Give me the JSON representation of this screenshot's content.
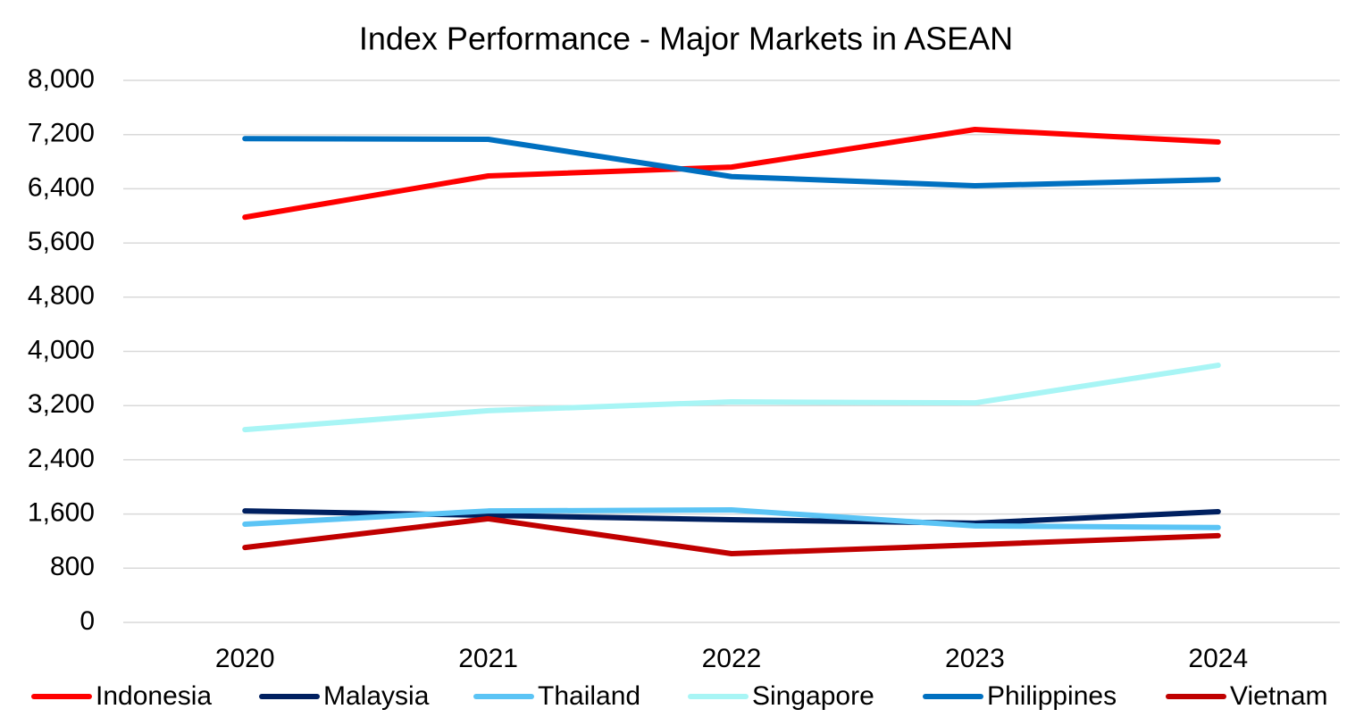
{
  "chart_data": {
    "type": "line",
    "title": "Index Performance - Major Markets in ASEAN",
    "categories": [
      "2020",
      "2021",
      "2022",
      "2023",
      "2024"
    ],
    "series": [
      {
        "name": "Indonesia",
        "color": "#ff0000",
        "values": [
          5980,
          6590,
          6720,
          7275,
          7090
        ]
      },
      {
        "name": "Malaysia",
        "color": "#002060",
        "values": [
          1645,
          1580,
          1515,
          1465,
          1635
        ]
      },
      {
        "name": "Thailand",
        "color": "#5bc4f5",
        "values": [
          1450,
          1645,
          1660,
          1425,
          1400
        ]
      },
      {
        "name": "Singapore",
        "color": "#a8f5f5",
        "values": [
          2845,
          3125,
          3255,
          3240,
          3795
        ]
      },
      {
        "name": "Philippines",
        "color": "#0070c0",
        "values": [
          7140,
          7130,
          6580,
          6445,
          6535
        ]
      },
      {
        "name": "Vietnam",
        "color": "#c00000",
        "values": [
          1105,
          1530,
          1015,
          1145,
          1280
        ]
      }
    ],
    "ylim": [
      0,
      8000
    ],
    "yticks": [
      0,
      800,
      {
        "value": 1600,
        "label": "1,600"
      },
      {
        "value": 2400,
        "label": "2,400"
      },
      {
        "value": 3200,
        "label": "3,200"
      },
      {
        "value": 4000,
        "label": "4,000"
      },
      {
        "value": 4800,
        "label": "4,800"
      },
      {
        "value": 5600,
        "label": "5,600"
      },
      {
        "value": 6400,
        "label": "6,400"
      },
      {
        "value": 7200,
        "label": "7,200"
      },
      {
        "value": 8000,
        "label": "8,000"
      }
    ],
    "grid": true,
    "legend": "bottom"
  }
}
